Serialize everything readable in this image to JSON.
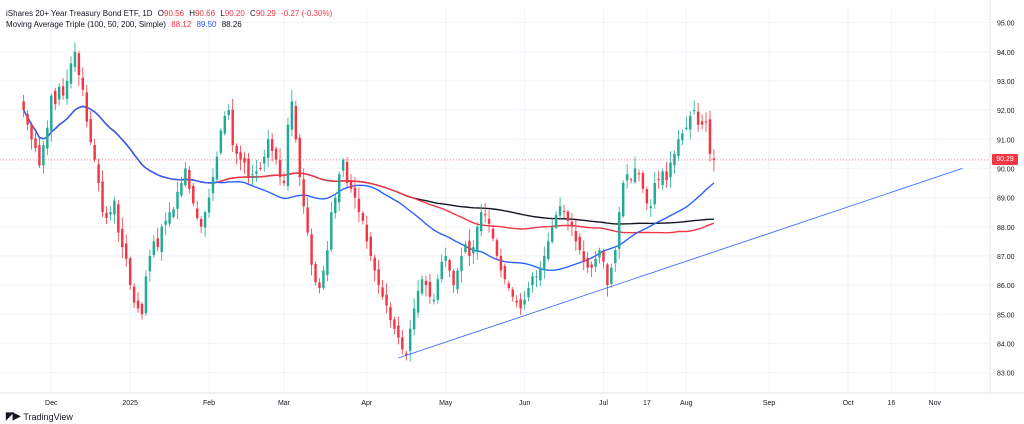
{
  "legend": {
    "symbol": "iShares 20+ Year Treasury Bond ETF",
    "interval": "1D",
    "open_label": "O",
    "open": "90.56",
    "high_label": "H",
    "high": "90.66",
    "low_label": "L",
    "low": "90.20",
    "close_label": "C",
    "close": "90.29",
    "change": "-0.27 (-0.30%)",
    "indicator": "Moving Average Triple (100, 50, 200, Simple)",
    "ma100": "88.12",
    "ma50": "89.50",
    "ma200": "88.26"
  },
  "brand": {
    "name": "TradingView"
  },
  "last_price": "90.29",
  "colors": {
    "up": "#22ab94",
    "down": "#f23645",
    "ma50": "#2962ff",
    "ma100": "#f23645",
    "ma200": "#131722",
    "trendline": "#2962ff"
  },
  "chart_data": {
    "type": "candlestick",
    "y_ticks": [
      "83.00",
      "84.00",
      "85.00",
      "86.00",
      "87.00",
      "88.00",
      "89.00",
      "90.00",
      "91.00",
      "92.00",
      "93.00",
      "94.00",
      "95.00"
    ],
    "ylim": [
      82.3,
      95.5
    ],
    "x_ticks": [
      {
        "label": "Dec",
        "x": 7
      },
      {
        "label": "2025",
        "x": 27
      },
      {
        "label": "Feb",
        "x": 47
      },
      {
        "label": "Mar",
        "x": 66
      },
      {
        "label": "Apr",
        "x": 87
      },
      {
        "label": "May",
        "x": 107
      },
      {
        "label": "Jun",
        "x": 127
      },
      {
        "label": "Jul",
        "x": 147
      },
      {
        "label": "17",
        "x": 158
      },
      {
        "label": "Aug",
        "x": 168
      },
      {
        "label": "Sep",
        "x": 189
      },
      {
        "label": "Oct",
        "x": 209
      },
      {
        "label": "16",
        "x": 220
      },
      {
        "label": "Nov",
        "x": 231
      }
    ],
    "xlim": [
      -6,
      245
    ],
    "close": [
      92.0,
      91.5,
      91.0,
      90.7,
      90.1,
      90.8,
      91.4,
      92.5,
      92.2,
      92.8,
      92.5,
      93.0,
      93.6,
      94.0,
      93.2,
      92.7,
      91.6,
      90.9,
      90.3,
      89.5,
      88.5,
      88.3,
      88.5,
      88.9,
      87.8,
      87.3,
      86.9,
      86.0,
      85.4,
      85.2,
      85.0,
      86.3,
      87.0,
      87.5,
      87.3,
      88.0,
      88.2,
      88.5,
      88.6,
      89.2,
      89.5,
      90.0,
      89.3,
      88.8,
      88.3,
      88.0,
      88.5,
      89.0,
      89.7,
      90.4,
      91.3,
      91.8,
      92.0,
      90.8,
      90.5,
      90.3,
      90.2,
      89.7,
      89.8,
      89.9,
      90.0,
      90.4,
      91.0,
      90.6,
      90.3,
      89.7,
      89.5,
      91.5,
      92.3,
      91.0,
      89.7,
      88.7,
      87.8,
      86.7,
      86.1,
      85.9,
      86.5,
      87.2,
      88.5,
      89.0,
      89.8,
      90.3,
      89.5,
      89.3,
      89.0,
      88.5,
      88.2,
      87.5,
      87.0,
      86.5,
      86.0,
      85.6,
      85.3,
      84.8,
      84.5,
      84.2,
      83.8,
      83.6,
      84.5,
      85.2,
      85.8,
      86.2,
      86.0,
      85.6,
      85.5,
      86.2,
      86.8,
      87.0,
      86.5,
      86.0,
      86.5,
      87.0,
      87.4,
      87.0,
      87.3,
      88.0,
      88.5,
      88.4,
      88.1,
      87.6,
      87.0,
      86.5,
      86.2,
      85.9,
      85.6,
      85.4,
      85.2,
      85.5,
      85.9,
      86.3,
      86.3,
      86.6,
      87.0,
      87.5,
      88.0,
      88.4,
      88.7,
      88.5,
      88.2,
      88.0,
      87.5,
      87.2,
      86.8,
      86.6,
      86.6,
      86.9,
      87.2,
      86.8,
      86.0,
      86.6,
      87.2,
      88.5,
      89.5,
      89.8,
      89.6,
      90.0,
      89.8,
      89.3,
      88.8,
      88.7,
      89.5,
      89.6,
      89.9,
      89.6,
      90.2,
      90.5,
      91.0,
      91.2,
      91.4,
      91.8,
      92.0,
      91.5,
      91.5,
      91.6,
      90.5,
      90.29
    ],
    "ma50_end": 89.5,
    "ma100_end": 88.12,
    "ma200_end": 88.26,
    "trendline": [
      [
        95,
        83.5
      ],
      [
        238,
        90.0
      ]
    ]
  }
}
